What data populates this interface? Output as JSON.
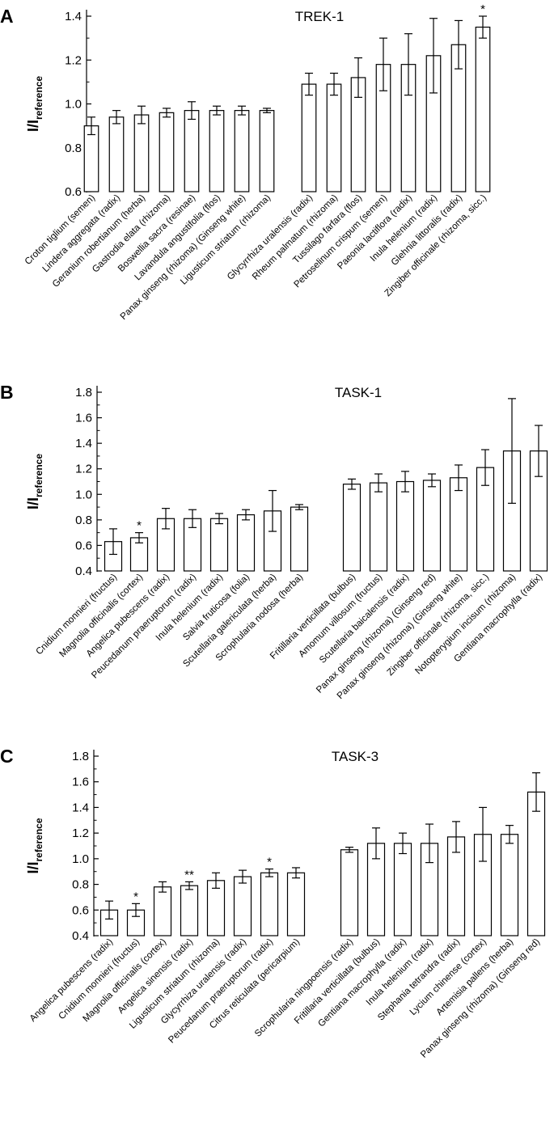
{
  "chart_data": [
    {
      "type": "bar",
      "panel": "A",
      "title": "TREK-1",
      "ylabel": "I/I",
      "ylabel_subscript": "reference",
      "ylim": [
        0.6,
        1.4
      ],
      "yticks": [
        0.6,
        0.8,
        1.0,
        1.2,
        1.4
      ],
      "ytick_labels": [
        "0.6",
        "0.8",
        "1.0",
        "1.2",
        "1.4"
      ],
      "grid": false,
      "categories": [
        "Croton tiglium (semen)",
        "Lindera aggregata (radix)",
        "Geranium robertianum (herba)",
        "Gastrodia elata (rhizoma)",
        "Boswellia sacra (resinae)",
        "Lavandula angustifolia (flos)",
        "Panax ginseng (rhizoma) (Ginseng white)",
        "Ligusticum striatum (rhizoma)",
        "Glycyrrhiza uralensis (radix)",
        "Rheum palmatum (rhizoma)",
        "Tussilago farfara (flos)",
        "Petroselinum crispum (semen)",
        "Paeonia lactiflora (radix)",
        "Inula helenium (radix)",
        "Glehnia littoralis (radix)",
        "Zingiber officinale (rhizoma, sicc.)"
      ],
      "values": [
        0.9,
        0.94,
        0.95,
        0.96,
        0.97,
        0.97,
        0.97,
        0.97,
        1.09,
        1.09,
        1.12,
        1.18,
        1.18,
        1.22,
        1.27,
        1.35
      ],
      "errors": [
        0.04,
        0.03,
        0.04,
        0.02,
        0.04,
        0.02,
        0.02,
        0.01,
        0.05,
        0.05,
        0.09,
        0.12,
        0.14,
        0.17,
        0.11,
        0.05
      ],
      "significance": [
        "",
        "",
        "",
        "",
        "",
        "",
        "",
        "",
        "",
        "",
        "",
        "",
        "",
        "",
        "",
        "*"
      ]
    },
    {
      "type": "bar",
      "panel": "B",
      "title": "TASK-1",
      "ylabel": "I/I",
      "ylabel_subscript": "reference",
      "ylim": [
        0.4,
        1.8
      ],
      "yticks": [
        0.4,
        0.6,
        0.8,
        1.0,
        1.2,
        1.4,
        1.6,
        1.8
      ],
      "ytick_labels": [
        "0.4",
        "0.6",
        "0.8",
        "1.0",
        "1.2",
        "1.4",
        "1.6",
        "1.8"
      ],
      "grid": false,
      "categories": [
        "Cnidium monnieri (fructus)",
        "Magnolia officinalis (cortex)",
        "Angelica pubescens (radix)",
        "Peucedanum praeruptorum (radix)",
        "Inula helenium (radix)",
        "Salvia fruticosa (folia)",
        "Scutellaria galericulata (herba)",
        "Scrophularia nodosa (herba)",
        "Fritillaria verticillata (bulbus)",
        "Amomum villosum (fructus)",
        "Scutellaria baicalensis (radix)",
        "Panax ginseng (rhizoma) (Ginseng red)",
        "Panax ginseng (rhizoma) (Ginseng white)",
        "Zingiber officinale (rhizoma, sicc.)",
        "Notopterygium incisum (rhizoma)",
        "Gentiana macrophylla (radix)"
      ],
      "values": [
        0.63,
        0.66,
        0.81,
        0.81,
        0.81,
        0.84,
        0.87,
        0.9,
        1.08,
        1.09,
        1.1,
        1.11,
        1.13,
        1.21,
        1.34,
        1.34
      ],
      "errors": [
        0.1,
        0.04,
        0.08,
        0.07,
        0.04,
        0.04,
        0.16,
        0.02,
        0.04,
        0.07,
        0.08,
        0.05,
        0.1,
        0.14,
        0.41,
        0.2
      ],
      "significance": [
        "",
        "*",
        "",
        "",
        "",
        "",
        "",
        "",
        "",
        "",
        "",
        "",
        "",
        "",
        "",
        ""
      ]
    },
    {
      "type": "bar",
      "panel": "C",
      "title": "TASK-3",
      "ylabel": "I/I",
      "ylabel_subscript": "reference",
      "ylim": [
        0.4,
        1.8
      ],
      "yticks": [
        0.4,
        0.6,
        0.8,
        1.0,
        1.2,
        1.4,
        1.6,
        1.8
      ],
      "ytick_labels": [
        "0.4",
        "0.6",
        "0.8",
        "1.0",
        "1.2",
        "1.4",
        "1.6",
        "1.8"
      ],
      "grid": false,
      "categories": [
        "Angelica pubescens (radix)",
        "Cnidium monnieri (fructus)",
        "Magnolia officinalis (cortex)",
        "Angelica sinensis (radix)",
        "Ligusticum striatum (rhizoma)",
        "Glycyrrhiza uralensis (radix)",
        "Peucedanum praeruptorum (radix)",
        "Citrus reticulata (pericarpium)",
        "Scrophularia ningpoensis (radix)",
        "Fritillaria verticillata (bulbus)",
        "Gentiana macrophylla (radix)",
        "Inula helenium (radix)",
        "Stephania tetrandra (radix)",
        "Lycium chinense (cortex)",
        "Artemisia pallens (herba)",
        "Panax ginseng (rhizoma) (Ginseng red)"
      ],
      "values": [
        0.6,
        0.6,
        0.78,
        0.79,
        0.83,
        0.86,
        0.89,
        0.89,
        1.07,
        1.12,
        1.12,
        1.12,
        1.17,
        1.19,
        1.19,
        1.52
      ],
      "errors": [
        0.07,
        0.05,
        0.04,
        0.03,
        0.06,
        0.05,
        0.03,
        0.04,
        0.02,
        0.12,
        0.08,
        0.15,
        0.12,
        0.21,
        0.07,
        0.15
      ],
      "significance": [
        "",
        "*",
        "",
        "**",
        "",
        "",
        "*",
        "",
        "",
        "",
        "",
        "",
        "",
        "",
        "",
        ""
      ]
    }
  ]
}
